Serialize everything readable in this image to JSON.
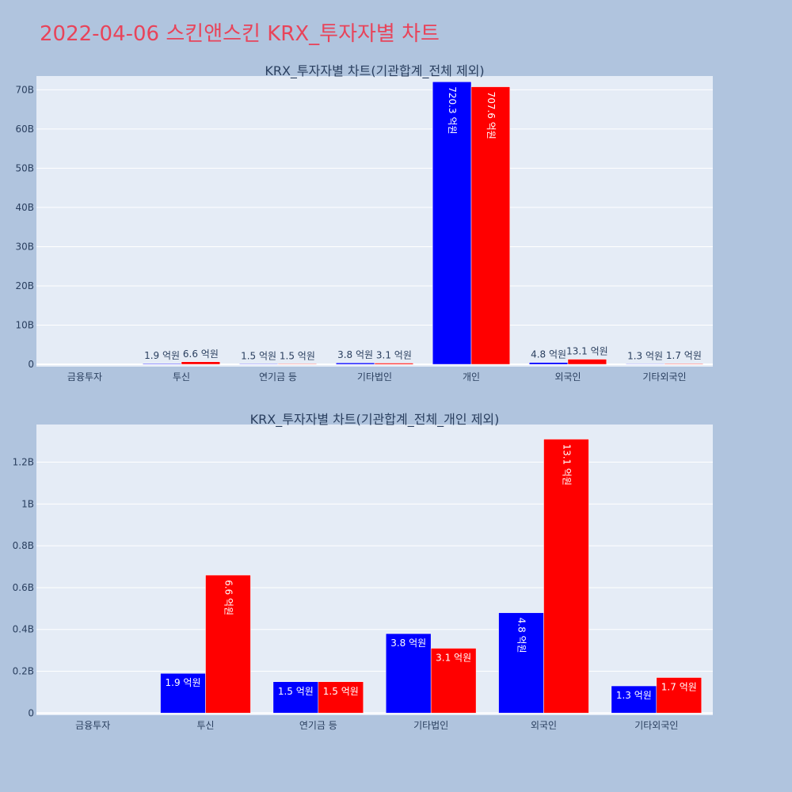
{
  "page": {
    "title": "2022-04-06 스킨앤스킨 KRX_투자자별 차트"
  },
  "colors": {
    "background": "#b0c4de",
    "plot_bg": "#e5ecf6",
    "buy": "#0000ff",
    "sell": "#ff0000",
    "title": "#e8445a"
  },
  "chart_data": [
    {
      "type": "bar",
      "title": "KRX_투자자별 차트(기관합계_전체 제외)",
      "categories": [
        "금융투자",
        "투신",
        "연기금 등",
        "기타법인",
        "개인",
        "외국인",
        "기타외국인"
      ],
      "series": [
        {
          "color": "#0000ff",
          "values": [
            0,
            190000000,
            150000000,
            380000000,
            72030000000,
            480000000,
            130000000
          ],
          "labels": [
            "",
            "1.9 억원",
            "1.5 억원",
            "3.8 억원",
            "720.3 억원",
            "4.8 억원",
            "1.3 억원"
          ]
        },
        {
          "color": "#ff0000",
          "values": [
            0,
            660000000,
            150000000,
            310000000,
            70760000000,
            1310000000,
            170000000
          ],
          "labels": [
            "",
            "6.6 억원",
            "1.5 억원",
            "3.1 억원",
            "707.6 억원",
            "13.1 억원",
            "1.7 억원"
          ]
        }
      ],
      "y_ticks": [
        0,
        10000000000,
        20000000000,
        30000000000,
        40000000000,
        50000000000,
        60000000000,
        70000000000
      ],
      "y_tick_labels": [
        "0",
        "10B",
        "20B",
        "30B",
        "40B",
        "50B",
        "60B",
        "70B"
      ],
      "ylim": [
        -600000000,
        73500000000
      ],
      "grid": true,
      "legend": "none"
    },
    {
      "type": "bar",
      "title": "KRX_투자자별 차트(기관합계_전체_개인 제외)",
      "categories": [
        "금융투자",
        "투신",
        "연기금 등",
        "기타법인",
        "외국인",
        "기타외국인"
      ],
      "series": [
        {
          "color": "#0000ff",
          "values": [
            0,
            190000000,
            150000000,
            380000000,
            480000000,
            130000000
          ],
          "labels": [
            "",
            "1.9 억원",
            "1.5 억원",
            "3.8 억원",
            "4.8 억원",
            "1.3 억원"
          ]
        },
        {
          "color": "#ff0000",
          "values": [
            0,
            660000000,
            150000000,
            310000000,
            1310000000,
            170000000
          ],
          "labels": [
            "",
            "6.6 억원",
            "1.5 억원",
            "3.1 억원",
            "13.1 억원",
            "1.7 억원"
          ]
        }
      ],
      "y_ticks": [
        0,
        200000000,
        400000000,
        600000000,
        800000000,
        1000000000,
        1200000000
      ],
      "y_tick_labels": [
        "0",
        "0.2B",
        "0.4B",
        "0.6B",
        "0.8B",
        "1B",
        "1.2B"
      ],
      "ylim": [
        -10000000,
        1380000000
      ],
      "grid": true,
      "legend": "none"
    }
  ]
}
